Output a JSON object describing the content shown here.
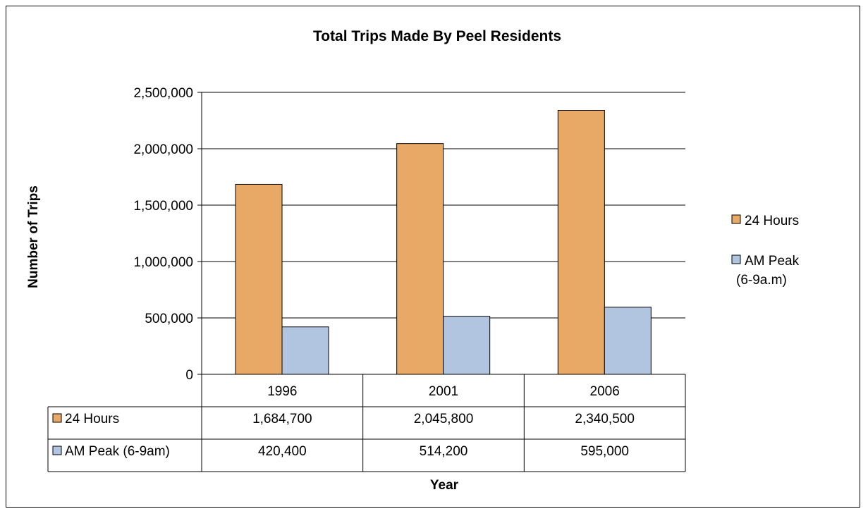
{
  "chart_data": {
    "type": "bar",
    "title": "Total Trips Made By Peel Residents",
    "xlabel": "Year",
    "ylabel": "Number of Trips",
    "categories": [
      "1996",
      "2001",
      "2006"
    ],
    "ylim": [
      0,
      2500000
    ],
    "yticks": [
      0,
      500000,
      1000000,
      1500000,
      2000000,
      2500000
    ],
    "ytick_labels": [
      "0",
      "500,000",
      "1,000,000",
      "1,500,000",
      "2,000,000",
      "2,500,000"
    ],
    "grid": true,
    "legend_position": "right",
    "series": [
      {
        "name": "24 Hours",
        "legend_lines": [
          "24 Hours"
        ],
        "table_label": "24 Hours",
        "values": [
          1684700,
          2045800,
          2340500
        ],
        "value_labels": [
          "1,684,700",
          "2,045,800",
          "2,340,500"
        ],
        "color": "#E8A866"
      },
      {
        "name": "AM Peak (6-9a.m)",
        "legend_lines": [
          "AM Peak",
          "(6-9a.m)"
        ],
        "table_label": "AM Peak (6-9am)",
        "values": [
          420400,
          514200,
          595000
        ],
        "value_labels": [
          "420,400",
          "514,200",
          "595,000"
        ],
        "color": "#B1C5E1"
      }
    ]
  }
}
